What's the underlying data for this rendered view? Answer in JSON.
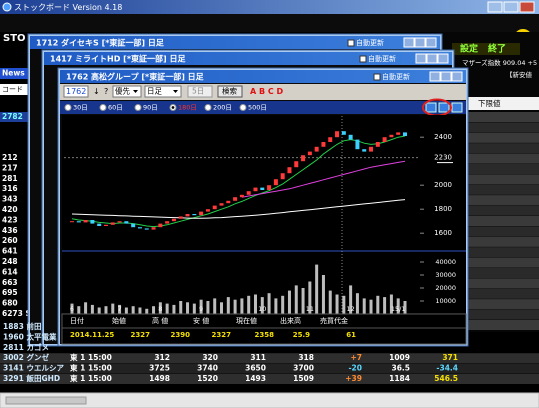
{
  "app": {
    "title": "ストックボード Version 4.18",
    "logo": "STO",
    "brand": "SDB",
    "news": "News",
    "code_header": "コード",
    "settings": "設定",
    "exit": "終了",
    "index_line": "マザーズ指数 909.04 +5",
    "new_low": "【新安値",
    "lower_limit": "下限値",
    "codes": [
      "2782",
      "212",
      "217",
      "281",
      "316",
      "343",
      "420",
      "423",
      "436",
      "260",
      "641",
      "248",
      "614",
      "663",
      "695",
      "680",
      "6273 S"
    ]
  },
  "windows": [
    {
      "title": "1712 ダイセキS [*東証一部] 日足",
      "auto_update": "自動更新"
    },
    {
      "title": "1417 ミライトHD [*東証一部] 日足",
      "auto_update": "自動更新"
    },
    {
      "title": "1762 高松グループ [*東証一部] 日足",
      "auto_update": "自動更新"
    }
  ],
  "toolbar": {
    "code": "1762",
    "down": "↓",
    "help": "?",
    "priority": "優先",
    "period": "日足",
    "days": "5日",
    "search": "検索",
    "groups": "A B C D"
  },
  "ranges": [
    "30日",
    "60日",
    "90日",
    "180日",
    "200日",
    "500日"
  ],
  "info": {
    "headers": [
      "日付",
      "始値",
      "高 値",
      "安 値",
      "現在値",
      "出来高",
      "売買代金"
    ],
    "values": [
      "2014.11.25",
      "2327",
      "2390",
      "2327",
      "2358",
      "25.9",
      "61"
    ]
  },
  "chart_data": {
    "type": "candlestick",
    "categories": [
      "6",
      null,
      null,
      null,
      null,
      null,
      null,
      "7",
      null,
      null,
      null,
      null,
      null,
      "8",
      null,
      null,
      null,
      null,
      null,
      "9",
      null,
      null,
      null,
      null,
      null,
      null,
      null,
      null,
      "10",
      null,
      null,
      null,
      null,
      null,
      null,
      "11",
      null,
      null,
      null,
      null,
      null,
      "12",
      null,
      null,
      null,
      null,
      null,
      null,
      "15/1",
      null
    ],
    "values": [
      1700,
      1690,
      1710,
      1680,
      1660,
      1670,
      1690,
      1700,
      1680,
      1650,
      1640,
      1630,
      1650,
      1680,
      1700,
      1720,
      1740,
      1760,
      1750,
      1780,
      1800,
      1830,
      1850,
      1870,
      1900,
      1920,
      1950,
      1980,
      1960,
      2000,
      2050,
      2100,
      2150,
      2200,
      2250,
      2280,
      2320,
      2360,
      2400,
      2450,
      2420,
      2380,
      2300,
      2280,
      2320,
      2360,
      2400,
      2420,
      2440,
      2410
    ],
    "up_color": "#ff3a3a",
    "down_color": "#3ad0ff",
    "ylim": [
      1460,
      2560
    ],
    "yticks": [
      1600,
      1800,
      2000,
      2400
    ],
    "current_price": 2230,
    "grid": false,
    "series": [
      {
        "color": "#22d04a",
        "values": [
          1720,
          1710,
          1705,
          1700,
          1690,
          1685,
          1680,
          1685,
          1685,
          1680,
          1670,
          1660,
          1655,
          1660,
          1670,
          1685,
          1700,
          1715,
          1730,
          1745,
          1760,
          1780,
          1800,
          1820,
          1845,
          1865,
          1890,
          1915,
          1935,
          1955,
          1980,
          2010,
          2050,
          2090,
          2130,
          2170,
          2210,
          2260,
          2300,
          2340,
          2370,
          2380,
          2370,
          2350,
          2340,
          2345,
          2360,
          2380,
          2400,
          2410
        ]
      },
      {
        "color": "#ffffff",
        "values": [
          1760,
          1758,
          1756,
          1754,
          1752,
          1750,
          1748,
          1746,
          1744,
          1742,
          1740,
          1738,
          1736,
          1734,
          1732,
          1730,
          1728,
          1726,
          1724,
          1724,
          1726,
          1728,
          1730,
          1734,
          1738,
          1742,
          1746,
          1750,
          1755,
          1760,
          1766,
          1772,
          1778,
          1784,
          1790,
          1796,
          1802,
          1808,
          1814,
          1820,
          1826,
          1832,
          1838,
          1844,
          1850,
          1856,
          1862,
          1868,
          1874,
          1880
        ]
      },
      {
        "color": "#e040e0",
        "values": [
          null,
          null,
          null,
          null,
          null,
          null,
          null,
          null,
          null,
          null,
          null,
          null,
          null,
          null,
          null,
          null,
          null,
          null,
          null,
          null,
          null,
          null,
          null,
          null,
          null,
          1900,
          1910,
          1920,
          1930,
          1940,
          1950,
          1960,
          1970,
          1985,
          2000,
          2015,
          2030,
          2045,
          2060,
          2075,
          2090,
          2105,
          2120,
          2135,
          2150,
          2160,
          2170,
          2180,
          2190,
          2200
        ]
      }
    ],
    "volume": {
      "color": "#bdbdbd",
      "ylim": [
        0,
        50000
      ],
      "yticks": [
        10000,
        20000,
        30000,
        40000
      ],
      "values": [
        8000,
        6000,
        9000,
        7000,
        5000,
        6000,
        8000,
        7000,
        5000,
        6000,
        5000,
        4000,
        6000,
        9000,
        8000,
        7000,
        10000,
        9000,
        8000,
        11000,
        10000,
        12000,
        9000,
        13000,
        11000,
        12000,
        14000,
        15000,
        13000,
        16000,
        12000,
        14000,
        18000,
        22000,
        20000,
        25000,
        38000,
        30000,
        18000,
        15000,
        14000,
        22000,
        16000,
        12000,
        11000,
        14000,
        13000,
        15000,
        12000,
        10000
      ]
    }
  },
  "table": {
    "rows": [
      [
        "1883 前田"
      ],
      [
        "1960 太平電業"
      ],
      [
        "2811 カゴメ"
      ],
      [
        "3002 グンゼ",
        "東 1",
        "15:00",
        "312",
        "320",
        "311",
        "318",
        "+7",
        "1009",
        "371"
      ],
      [
        "3141 ウエルシア",
        "東 1",
        "15:00",
        "3725",
        "3740",
        "3650",
        "3700",
        "-20",
        "36.5",
        "-34.4"
      ],
      [
        "3291 飯田GHD",
        "東 1",
        "15:00",
        "1498",
        "1520",
        "1493",
        "1509",
        "+39",
        "1184",
        "546.5"
      ]
    ]
  }
}
